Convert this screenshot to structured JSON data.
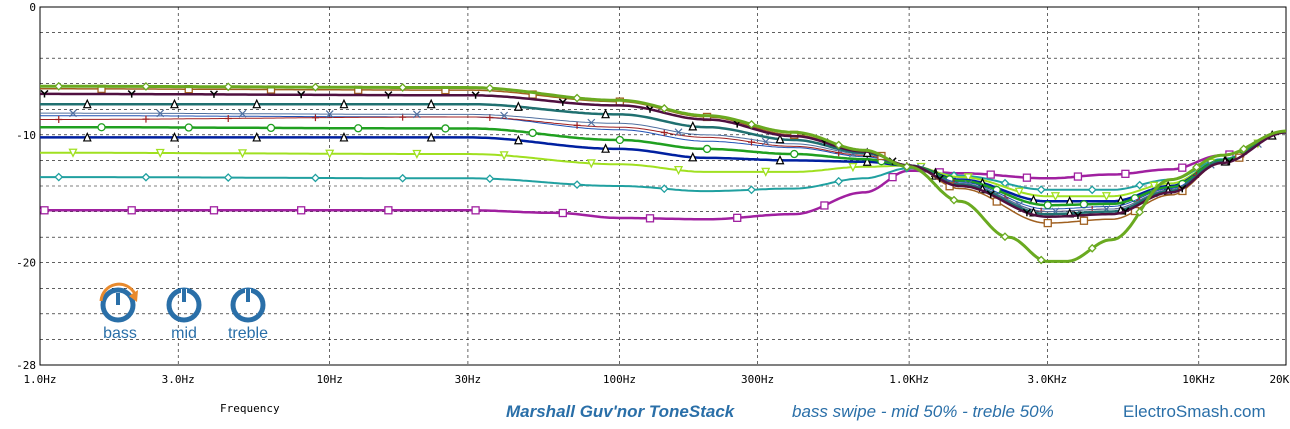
{
  "chart_data": {
    "type": "line",
    "xscale": "log",
    "xlim": [
      1,
      20000
    ],
    "ylim": [
      -28,
      0
    ],
    "xticks": [
      {
        "v": 1,
        "label": "1.0Hz"
      },
      {
        "v": 3,
        "label": "3.0Hz"
      },
      {
        "v": 10,
        "label": "10Hz"
      },
      {
        "v": 30,
        "label": "30Hz"
      },
      {
        "v": 100,
        "label": "100Hz"
      },
      {
        "v": 300,
        "label": "300Hz"
      },
      {
        "v": 1000,
        "label": "1.0KHz"
      },
      {
        "v": 3000,
        "label": "3.0KHz"
      },
      {
        "v": 10000,
        "label": "10KHz"
      },
      {
        "v": 20000,
        "label": "20KHz"
      }
    ],
    "yticks": [
      {
        "v": 0,
        "label": "0"
      },
      {
        "v": -10,
        "label": "-10"
      },
      {
        "v": -20,
        "label": "-20"
      },
      {
        "v": -28,
        "label": "-28"
      }
    ],
    "grid": "dashed",
    "xlabel": "Frequency",
    "series": [
      {
        "color": "#a020a0",
        "marker": "square",
        "width": 2.5,
        "points": [
          [
            1,
            -15.9
          ],
          [
            30,
            -15.9
          ],
          [
            60,
            -16.1
          ],
          [
            100,
            -16.5
          ],
          [
            200,
            -16.6
          ],
          [
            400,
            -16.2
          ],
          [
            700,
            -14.5
          ],
          [
            1000,
            -12.8
          ],
          [
            1500,
            -13.0
          ],
          [
            3000,
            -13.4
          ],
          [
            5000,
            -13.1
          ],
          [
            8000,
            -12.7
          ],
          [
            12000,
            -11.6
          ],
          [
            20000,
            -9.8
          ]
        ]
      },
      {
        "color": "#20a0a0",
        "marker": "diamond",
        "width": 2,
        "points": [
          [
            1,
            -13.3
          ],
          [
            30,
            -13.4
          ],
          [
            100,
            -14.0
          ],
          [
            200,
            -14.4
          ],
          [
            400,
            -14.2
          ],
          [
            700,
            -13.4
          ],
          [
            1000,
            -12.6
          ],
          [
            1500,
            -13.2
          ],
          [
            3000,
            -14.3
          ],
          [
            5000,
            -14.3
          ],
          [
            8000,
            -13.5
          ],
          [
            12000,
            -11.9
          ],
          [
            20000,
            -9.8
          ]
        ]
      },
      {
        "color": "#a0e020",
        "marker": "triangle-down",
        "width": 2,
        "points": [
          [
            1,
            -11.4
          ],
          [
            30,
            -11.5
          ],
          [
            100,
            -12.3
          ],
          [
            200,
            -12.9
          ],
          [
            400,
            -12.9
          ],
          [
            700,
            -12.5
          ],
          [
            1000,
            -12.4
          ],
          [
            1500,
            -13.3
          ],
          [
            3000,
            -14.8
          ],
          [
            5000,
            -14.8
          ],
          [
            8000,
            -13.8
          ],
          [
            12000,
            -12.0
          ],
          [
            20000,
            -9.8
          ]
        ]
      },
      {
        "color": "#0020a0",
        "marker": "triangle",
        "width": 2.5,
        "points": [
          [
            1,
            -10.2
          ],
          [
            30,
            -10.2
          ],
          [
            100,
            -11.1
          ],
          [
            200,
            -11.8
          ],
          [
            400,
            -12.0
          ],
          [
            700,
            -12.1
          ],
          [
            1000,
            -12.4
          ],
          [
            1500,
            -13.5
          ],
          [
            3000,
            -15.2
          ],
          [
            5000,
            -15.2
          ],
          [
            8000,
            -14.0
          ],
          [
            12000,
            -12.0
          ],
          [
            20000,
            -9.8
          ]
        ]
      },
      {
        "color": "#20a020",
        "marker": "circle",
        "width": 2.5,
        "points": [
          [
            1,
            -9.4
          ],
          [
            30,
            -9.5
          ],
          [
            100,
            -10.4
          ],
          [
            200,
            -11.1
          ],
          [
            400,
            -11.5
          ],
          [
            700,
            -11.9
          ],
          [
            1000,
            -12.4
          ],
          [
            1500,
            -13.6
          ],
          [
            3000,
            -15.5
          ],
          [
            5000,
            -15.4
          ],
          [
            8000,
            -14.1
          ],
          [
            12000,
            -12.0
          ],
          [
            20000,
            -9.8
          ]
        ]
      },
      {
        "color": "#1e50b4",
        "marker": "none",
        "width": 1,
        "points": [
          [
            1,
            -8.5
          ],
          [
            30,
            -8.6
          ],
          [
            100,
            -9.6
          ],
          [
            200,
            -10.5
          ],
          [
            400,
            -11.0
          ],
          [
            700,
            -11.7
          ],
          [
            1000,
            -12.4
          ],
          [
            1500,
            -13.7
          ],
          [
            3000,
            -15.8
          ],
          [
            5000,
            -15.6
          ],
          [
            8000,
            -14.2
          ],
          [
            12000,
            -12.1
          ],
          [
            20000,
            -9.8
          ]
        ]
      },
      {
        "color": "#a02020",
        "marker": "plus",
        "width": 1,
        "points": [
          [
            1,
            -8.8
          ],
          [
            30,
            -8.6
          ],
          [
            100,
            -9.4
          ],
          [
            200,
            -10.2
          ],
          [
            400,
            -10.9
          ],
          [
            700,
            -11.6
          ],
          [
            1000,
            -12.4
          ],
          [
            1500,
            -13.8
          ],
          [
            3000,
            -16.0
          ],
          [
            5000,
            -15.8
          ],
          [
            8000,
            -14.3
          ],
          [
            12000,
            -12.1
          ],
          [
            20000,
            -9.8
          ]
        ]
      },
      {
        "color": "#5070a0",
        "marker": "x",
        "width": 1,
        "points": [
          [
            1,
            -8.3
          ],
          [
            30,
            -8.4
          ],
          [
            100,
            -9.1
          ],
          [
            200,
            -10.0
          ],
          [
            400,
            -10.7
          ],
          [
            700,
            -11.5
          ],
          [
            1000,
            -12.4
          ],
          [
            1500,
            -13.8
          ],
          [
            3000,
            -16.0
          ],
          [
            5000,
            -15.8
          ],
          [
            8000,
            -14.3
          ],
          [
            12000,
            -12.1
          ],
          [
            20000,
            -9.8
          ]
        ]
      },
      {
        "color": "#207070",
        "marker": "triangle",
        "width": 2.5,
        "points": [
          [
            1,
            -7.6
          ],
          [
            30,
            -7.6
          ],
          [
            100,
            -8.4
          ],
          [
            200,
            -9.4
          ],
          [
            400,
            -10.4
          ],
          [
            700,
            -11.4
          ],
          [
            1000,
            -12.4
          ],
          [
            1500,
            -13.9
          ],
          [
            3000,
            -16.2
          ],
          [
            5000,
            -16.0
          ],
          [
            8000,
            -14.4
          ],
          [
            12000,
            -12.1
          ],
          [
            20000,
            -9.8
          ]
        ]
      },
      {
        "color": "#a06020",
        "marker": "square",
        "width": 1.5,
        "points": [
          [
            1,
            -6.4
          ],
          [
            30,
            -6.5
          ],
          [
            100,
            -7.4
          ],
          [
            200,
            -8.6
          ],
          [
            400,
            -10.0
          ],
          [
            700,
            -11.3
          ],
          [
            1000,
            -12.4
          ],
          [
            1500,
            -14.2
          ],
          [
            3000,
            -16.9
          ],
          [
            5000,
            -16.6
          ],
          [
            8000,
            -14.7
          ],
          [
            12000,
            -12.2
          ],
          [
            20000,
            -9.8
          ]
        ]
      },
      {
        "color": "#501040",
        "marker": "y",
        "width": 2.5,
        "points": [
          [
            1,
            -6.8
          ],
          [
            30,
            -6.9
          ],
          [
            100,
            -7.7
          ],
          [
            200,
            -8.8
          ],
          [
            400,
            -10.1
          ],
          [
            700,
            -11.3
          ],
          [
            1000,
            -12.4
          ],
          [
            1500,
            -14.0
          ],
          [
            3000,
            -16.4
          ],
          [
            5000,
            -16.2
          ],
          [
            8000,
            -14.5
          ],
          [
            12000,
            -12.2
          ],
          [
            20000,
            -9.8
          ]
        ]
      },
      {
        "color": "#6aaa20",
        "marker": "diamond",
        "width": 3,
        "points": [
          [
            1,
            -6.2
          ],
          [
            30,
            -6.3
          ],
          [
            100,
            -7.3
          ],
          [
            200,
            -8.5
          ],
          [
            400,
            -9.8
          ],
          [
            700,
            -11.2
          ],
          [
            1000,
            -12.5
          ],
          [
            1500,
            -15.2
          ],
          [
            2200,
            -18.0
          ],
          [
            3000,
            -19.9
          ],
          [
            3500,
            -19.9
          ],
          [
            5000,
            -18.2
          ],
          [
            8000,
            -13.5
          ],
          [
            12000,
            -11.6
          ],
          [
            20000,
            -9.7
          ]
        ]
      }
    ]
  },
  "footer": {
    "axis_title": "Frequency",
    "title": "Marshall Guv'nor ToneStack",
    "subtitle": "bass swipe - mid 50% - treble 50%",
    "site": "ElectroSmash.com"
  },
  "knobs": [
    {
      "label": "bass"
    },
    {
      "label": "mid"
    },
    {
      "label": "treble"
    }
  ],
  "colors": {
    "accent": "#2a6fa8",
    "arrow": "#e88a2e"
  }
}
